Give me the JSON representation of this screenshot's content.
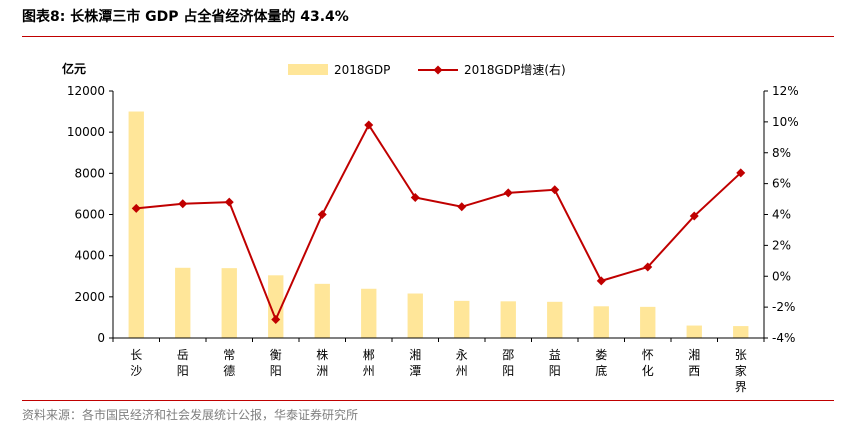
{
  "title": "图表8:   长株潭三市 GDP 占全省经济体量的 43.4%",
  "source": "资料来源：各市国民经济和社会发展统计公报，华泰证券研究所",
  "chart_data": {
    "type": "bar+line",
    "y_left_unit": "亿元",
    "categories": [
      "长沙",
      "岳阳",
      "常德",
      "衡阳",
      "株洲",
      "郴州",
      "湘潭",
      "永州",
      "邵阳",
      "益阳",
      "娄底",
      "怀化",
      "湘西",
      "张家界"
    ],
    "y_left": {
      "min": 0,
      "max": 12000,
      "step": 2000,
      "ticks": [
        "0",
        "2000",
        "4000",
        "6000",
        "8000",
        "10000",
        "12000"
      ]
    },
    "y_right": {
      "min": -4,
      "max": 12,
      "step": 2,
      "ticks": [
        "-4%",
        "-2%",
        "0%",
        "2%",
        "4%",
        "6%",
        "8%",
        "10%",
        "12%"
      ]
    },
    "series": [
      {
        "name": "2018GDP",
        "type": "bar",
        "axis": "left",
        "color": "#FFE699",
        "values": [
          11003,
          3411,
          3394,
          3046,
          2631,
          2392,
          2161,
          1805,
          1782,
          1758,
          1541,
          1513,
          605,
          579
        ]
      },
      {
        "name": "2018GDP增速(右)",
        "type": "line",
        "axis": "right",
        "color": "#C00000",
        "values": [
          4.4,
          4.7,
          4.8,
          -2.8,
          4.0,
          9.8,
          5.1,
          4.5,
          5.4,
          5.6,
          -0.3,
          0.6,
          3.9,
          6.7
        ]
      }
    ],
    "legend_position": "top-center",
    "grid": false
  }
}
